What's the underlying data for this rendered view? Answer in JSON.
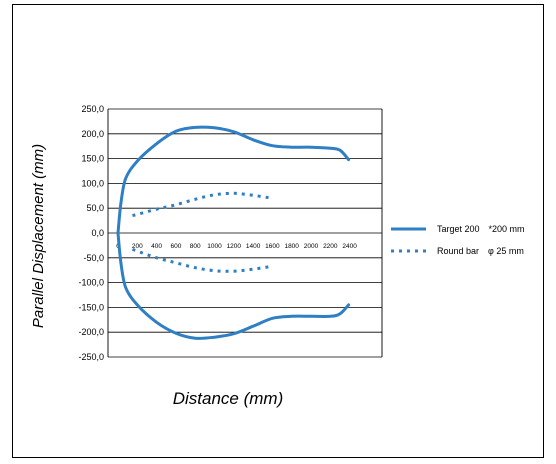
{
  "chart_data": {
    "type": "line",
    "title": "",
    "xlabel": "Distance (mm)",
    "ylabel": "Parallel Displacement (mm)",
    "xlim": [
      0,
      2600
    ],
    "ylim": [
      -250,
      250
    ],
    "x_ticks": [
      "0",
      "200",
      "400",
      "600",
      "800",
      "1000",
      "1200",
      "1400",
      "1600",
      "1800",
      "2000",
      "2200",
      "2400"
    ],
    "y_ticks": [
      "250,0",
      "200,0",
      "150,0",
      "100,0",
      "50,0",
      "0,0",
      "-50,0",
      "-100,0",
      "-150,0",
      "-200,0",
      "-250,0"
    ],
    "grid": "horizontal",
    "legend_position": "right",
    "series": [
      {
        "name": "Target 200　*200 mm",
        "color": "#2f7fc4",
        "style": "solid",
        "branches": [
          {
            "x": [
              0,
              30,
              80,
              200,
              400,
              600,
              800,
              1000,
              1200,
              1400,
              1600,
              1800,
              2000,
              2200,
              2300,
              2390
            ],
            "y": [
              0,
              60,
              110,
              145,
              180,
              205,
              213,
              212,
              204,
              188,
              176,
              173,
              173,
              171,
              167,
              148
            ]
          },
          {
            "x": [
              0,
              30,
              80,
              200,
              400,
              600,
              800,
              1000,
              1200,
              1400,
              1600,
              1800,
              2000,
              2200,
              2300,
              2390
            ],
            "y": [
              0,
              -60,
              -110,
              -145,
              -180,
              -202,
              -212,
              -210,
              -203,
              -188,
              -172,
              -168,
              -168,
              -168,
              -163,
              -145
            ]
          }
        ]
      },
      {
        "name": "Round bar　φ 25 mm",
        "color": "#2f7fc4",
        "style": "dotted",
        "branches": [
          {
            "x": [
              150,
              400,
              600,
              800,
              1000,
              1200,
              1400,
              1600
            ],
            "y": [
              35,
              48,
              57,
              68,
              77,
              80,
              76,
              70
            ]
          },
          {
            "x": [
              150,
              400,
              600,
              800,
              1000,
              1200,
              1400,
              1600
            ],
            "y": [
              -33,
              -50,
              -60,
              -70,
              -76,
              -77,
              -73,
              -67
            ]
          }
        ]
      }
    ]
  }
}
